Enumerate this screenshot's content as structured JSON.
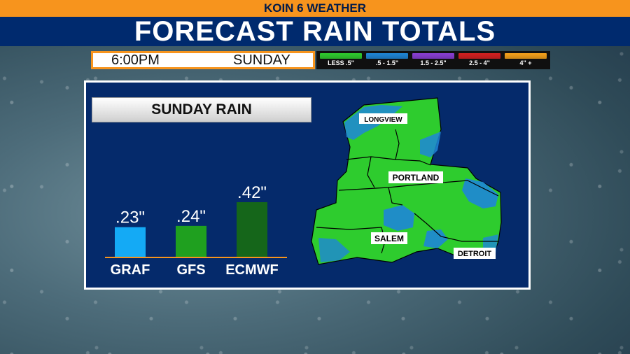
{
  "header": {
    "station": "KOIN 6 WEATHER",
    "title": "FORECAST RAIN TOTALS"
  },
  "info_bar": {
    "time": "6:00PM",
    "day": "SUNDAY"
  },
  "legend": [
    {
      "label": "LESS .5\"",
      "color": "#2ecc2e"
    },
    {
      "label": ".5 - 1.5\"",
      "color": "#1e86d8"
    },
    {
      "label": "1.5 - 2.5\"",
      "color": "#8a3fd6"
    },
    {
      "label": "2.5 - 4\"",
      "color": "#d62020"
    },
    {
      "label": "4\" +",
      "color": "#f7a21a"
    }
  ],
  "chart_data": {
    "type": "bar",
    "title": "SUNDAY RAIN",
    "categories": [
      "GRAF",
      "GFS",
      "ECMWF"
    ],
    "values": [
      0.23,
      0.24,
      0.42
    ],
    "value_labels": [
      ".23\"",
      ".24\"",
      ".42\""
    ],
    "colors": [
      "#14aaf5",
      "#1fa01f",
      "#15661a"
    ],
    "ylim": [
      0,
      0.42
    ],
    "grid": false,
    "axis_color": "#f7941d"
  },
  "map": {
    "cities": [
      "LONGVIEW",
      "PORTLAND",
      "SALEM",
      "DETROIT"
    ],
    "colors": {
      "light_rain": "#2ecc2e",
      "moderate_rain": "#1e86d8",
      "border": "#000000"
    }
  }
}
